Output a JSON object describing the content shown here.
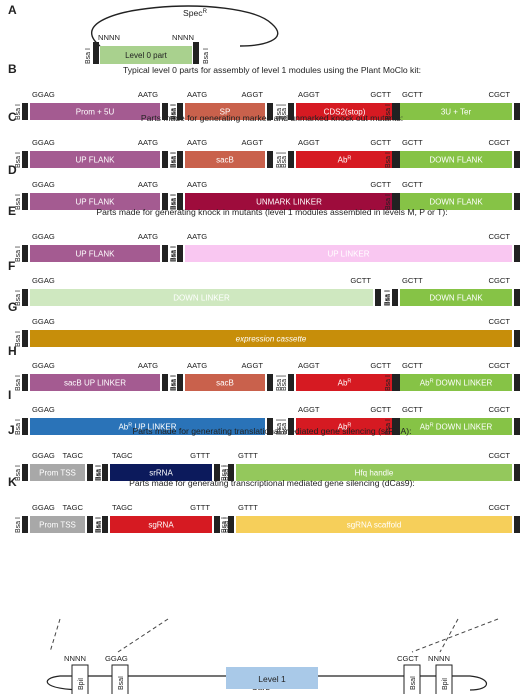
{
  "panelA": {
    "label": "A",
    "plasmid_marker_main": "Spec",
    "plasmid_marker_sup": "R",
    "left_site": "NNNN",
    "right_site": "NNNN",
    "part_label": "Level 0 part",
    "enzyme": "Bsa I"
  },
  "rows": [
    {
      "label": "B",
      "caption": "Typical level 0 parts for assembly of level 1 modules using the Plant MoClo kit:",
      "sites": [
        [
          "GGAG",
          "AATG"
        ],
        [
          "AATG",
          "AGGT"
        ],
        [
          "AGGT",
          "GCTT"
        ],
        [
          "GCTT",
          "CGCT"
        ]
      ],
      "parts": [
        {
          "text": "Prom + 5U",
          "color": "#a45b91"
        },
        {
          "text": "SP",
          "color": "#c9614c"
        },
        {
          "text": "CDS2(stop)",
          "color": "#d61a22"
        },
        {
          "text": "3U + Ter",
          "color": "#86c346"
        }
      ]
    },
    {
      "label": "C",
      "caption": "Parts made for generating marked and unmarked knock out mutants:",
      "sites": [
        [
          "GGAG",
          "AATG"
        ],
        [
          "AATG",
          "AGGT"
        ],
        [
          "AGGT",
          "GCTT"
        ],
        [
          "GCTT",
          "CGCT"
        ]
      ],
      "parts": [
        {
          "text": "UP FLANK",
          "color": "#a45b91"
        },
        {
          "text": "sacB",
          "color": "#c9614c"
        },
        {
          "text": "Ab",
          "sup": "R",
          "color": "#d61a22"
        },
        {
          "text": "DOWN FLANK",
          "color": "#86c346"
        }
      ]
    },
    {
      "label": "D",
      "caption": "",
      "sites": [
        [
          "GGAG",
          "AATG"
        ],
        [
          "AATG",
          "GCTT"
        ],
        [
          "GCTT",
          ""
        ]
      ],
      "parts": [
        {
          "text": "UP FLANK",
          "color": "#a45b91"
        },
        {
          "text": "UNMARK LINKER",
          "color": "#9e0c3c"
        },
        {
          "text": "DOWN FLANK",
          "color": "#86c346"
        }
      ]
    },
    {
      "label": "E",
      "caption": "Parts made for generating knock in mutants (level 1 modules assembled in levels M, P or T):",
      "sites": [
        [
          "GGAG",
          "AATG"
        ],
        [
          "AATG",
          "CGCT"
        ]
      ],
      "parts": [
        {
          "text": "UP FLANK",
          "color": "#a45b91"
        },
        {
          "text": "UP LINKER",
          "color": "#f9c7f1"
        }
      ]
    },
    {
      "label": "F",
      "caption": "",
      "sites": [
        [
          "GGAG",
          "GCTT"
        ],
        [
          "GCTT",
          "CGCT"
        ]
      ],
      "parts": [
        {
          "text": "DOWN LINKER",
          "color": "#cfe8c0"
        },
        {
          "text": "DOWN FLANK",
          "color": "#86c346"
        }
      ]
    },
    {
      "label": "G",
      "caption": "",
      "sites": [
        [
          "GGAG",
          "CGCT"
        ]
      ],
      "parts": [
        {
          "text": "expression cassette",
          "color": "#c78e0a",
          "italic": true
        }
      ]
    },
    {
      "label": "H",
      "caption": "",
      "sites": [
        [
          "GGAG",
          "AATG"
        ],
        [
          "AATG",
          "AGGT"
        ],
        [
          "AGGT",
          "GCTT"
        ],
        [
          "GCTT",
          "CGCT"
        ]
      ],
      "parts": [
        {
          "text": "sacB UP LINKER",
          "color": "#a45b91"
        },
        {
          "text": "sacB",
          "color": "#c9614c"
        },
        {
          "text": "Ab",
          "sup": "R",
          "color": "#d61a22"
        },
        {
          "text": "Ab",
          "sup": "R",
          "tail": " DOWN LINKER",
          "color": "#86c346"
        }
      ]
    },
    {
      "label": "I",
      "caption": "",
      "sites": [
        [
          "GGAG",
          ""
        ],
        [
          "AGGT",
          "GCTT"
        ],
        [
          "GCTT",
          "CGCT"
        ]
      ],
      "parts": [
        {
          "text": "Ab",
          "sup": "R",
          "tail": " UP LINKER",
          "color": "#2a73b8"
        },
        {
          "text": "Ab",
          "sup": "R",
          "color": "#d61a22"
        },
        {
          "text": "Ab",
          "sup": "R",
          "tail": " DOWN LINKER",
          "color": "#86c346"
        }
      ]
    },
    {
      "label": "J",
      "caption": "Parts made for generating translational mediated gene silencing (srRNA):",
      "sites": [
        [
          "GGAG",
          "TAGC"
        ],
        [
          "TAGC",
          "GTTT"
        ],
        [
          "GTTT",
          "CGCT"
        ]
      ],
      "parts": [
        {
          "text": "Prom TSS",
          "color": "#a8a8a8"
        },
        {
          "text": "srRNA",
          "color": "#0c1a5c"
        },
        {
          "text": "Hfq handle",
          "color": "#94c85c"
        }
      ]
    },
    {
      "label": "K",
      "caption": "Parts made for generating transcriptional mediated gene silencing (dCas9):",
      "sites": [
        [
          "GGAG",
          "TAGC"
        ],
        [
          "TAGC",
          "GTTT"
        ],
        [
          "GTTT",
          "CGCT"
        ]
      ],
      "parts": [
        {
          "text": "Prom TSS",
          "color": "#a8a8a8"
        },
        {
          "text": "sgRNA",
          "color": "#d61a22"
        },
        {
          "text": "sgRNA scaffold",
          "color": "#f6cf5a"
        }
      ]
    }
  ],
  "level1": {
    "enzyme_bsa": "BsaI",
    "enzyme_bpi": "BpiI",
    "left_outer": "NNNN",
    "left_inner": "GGAG",
    "right_inner": "CGCT",
    "right_outer": "NNNN",
    "marker_main": "Carb",
    "marker_sup": "R",
    "part_label": "Level 1",
    "part_color": "#a9c9e8"
  }
}
